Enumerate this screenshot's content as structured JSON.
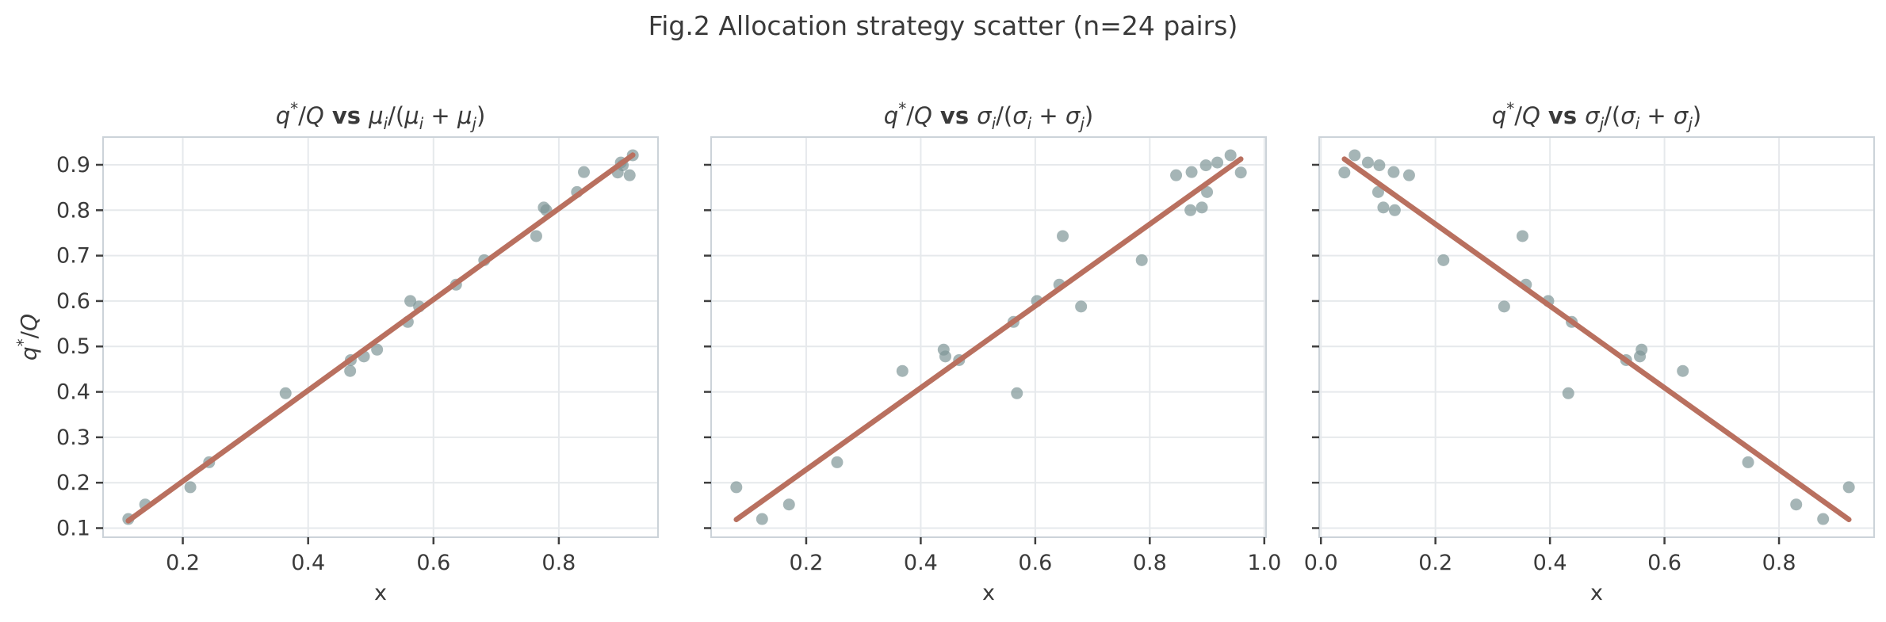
{
  "figure": {
    "suptitle": "Fig.2 Allocation strategy scatter (n=24 pairs)",
    "n_pairs": 24
  },
  "style": {
    "background": "#ffffff",
    "point_color": "#7f9597",
    "point_opacity": 0.7,
    "point_radius": 7.5,
    "line_color": "#b9705f",
    "line_width": 6.7,
    "grid_color": "#e6e9ec",
    "spine_color": "#ccd3d9",
    "tick_color": "#3f3f3f",
    "text_color": "#3a3a3a"
  },
  "chart_data": [
    {
      "type": "scatter",
      "title_plain": "q*/Q vs μi/(μi + μj)",
      "title_tokens": [
        {
          "t": "q",
          "it": 1
        },
        {
          "t": "*",
          "sup": 1
        },
        {
          "t": "/"
        },
        {
          "t": "Q",
          "it": 1
        },
        {
          "t": " vs ",
          "bold": 1
        },
        {
          "t": "μ",
          "it": 1
        },
        {
          "t": "i",
          "it": 1,
          "sub": 1
        },
        {
          "t": "/("
        },
        {
          "t": "μ",
          "it": 1
        },
        {
          "t": "i",
          "it": 1,
          "sub": 1
        },
        {
          "t": " + "
        },
        {
          "t": "μ",
          "it": 1
        },
        {
          "t": "j",
          "it": 1,
          "sub": 1
        },
        {
          "t": ")"
        }
      ],
      "xlabel": "x",
      "ylabel_plain": "q*/Q",
      "ylabel_tokens": [
        {
          "t": "q",
          "it": 1
        },
        {
          "t": "*",
          "sup": 1
        },
        {
          "t": "/"
        },
        {
          "t": "Q",
          "it": 1
        }
      ],
      "show_ytick_labels": true,
      "grid": true,
      "fit_line": "linear-ols",
      "xticks": [
        0.2,
        0.4,
        0.6,
        0.8
      ],
      "yticks": [
        0.1,
        0.2,
        0.3,
        0.4,
        0.5,
        0.6,
        0.7,
        0.8,
        0.9
      ],
      "xlim": [
        0.073,
        0.958
      ],
      "ylim": [
        0.08,
        0.961
      ],
      "x": [
        0.113,
        0.14,
        0.212,
        0.242,
        0.364,
        0.467,
        0.468,
        0.489,
        0.51,
        0.559,
        0.577,
        0.563,
        0.636,
        0.681,
        0.764,
        0.78,
        0.776,
        0.829,
        0.913,
        0.84,
        0.894,
        0.902,
        0.899,
        0.918
      ],
      "y": [
        0.12,
        0.152,
        0.19,
        0.245,
        0.397,
        0.446,
        0.47,
        0.478,
        0.493,
        0.554,
        0.588,
        0.6,
        0.636,
        0.69,
        0.743,
        0.8,
        0.806,
        0.84,
        0.877,
        0.884,
        0.883,
        0.899,
        0.905,
        0.921
      ]
    },
    {
      "type": "scatter",
      "title_plain": "q*/Q vs σi/(σi + σj)",
      "title_tokens": [
        {
          "t": "q",
          "it": 1
        },
        {
          "t": "*",
          "sup": 1
        },
        {
          "t": "/"
        },
        {
          "t": "Q",
          "it": 1
        },
        {
          "t": " vs ",
          "bold": 1
        },
        {
          "t": "σ",
          "it": 1
        },
        {
          "t": "i",
          "it": 1,
          "sub": 1
        },
        {
          "t": "/("
        },
        {
          "t": "σ",
          "it": 1
        },
        {
          "t": "i",
          "it": 1,
          "sub": 1
        },
        {
          "t": " + "
        },
        {
          "t": "σ",
          "it": 1
        },
        {
          "t": "j",
          "it": 1,
          "sub": 1
        },
        {
          "t": ")"
        }
      ],
      "xlabel": "x",
      "ylabel_plain": "",
      "ylabel_tokens": [],
      "show_ytick_labels": false,
      "grid": true,
      "fit_line": "linear-ols",
      "xticks": [
        0.2,
        0.4,
        0.6,
        0.8,
        1.0
      ],
      "yticks": [
        0.1,
        0.2,
        0.3,
        0.4,
        0.5,
        0.6,
        0.7,
        0.8,
        0.9
      ],
      "xlim": [
        0.034,
        1.003
      ],
      "ylim": [
        0.08,
        0.961
      ],
      "x": [
        0.123,
        0.17,
        0.078,
        0.254,
        0.568,
        0.368,
        0.467,
        0.443,
        0.44,
        0.562,
        0.68,
        0.603,
        0.642,
        0.786,
        0.648,
        0.871,
        0.891,
        0.9,
        0.846,
        0.873,
        0.959,
        0.898,
        0.918,
        0.941
      ],
      "y": [
        0.12,
        0.152,
        0.19,
        0.245,
        0.397,
        0.446,
        0.47,
        0.478,
        0.493,
        0.554,
        0.588,
        0.6,
        0.636,
        0.69,
        0.743,
        0.8,
        0.806,
        0.84,
        0.877,
        0.884,
        0.883,
        0.899,
        0.905,
        0.921
      ]
    },
    {
      "type": "scatter",
      "title_plain": "q*/Q vs σj/(σi + σj)",
      "title_tokens": [
        {
          "t": "q",
          "it": 1
        },
        {
          "t": "*",
          "sup": 1
        },
        {
          "t": "/"
        },
        {
          "t": "Q",
          "it": 1
        },
        {
          "t": " vs ",
          "bold": 1
        },
        {
          "t": "σ",
          "it": 1
        },
        {
          "t": "j",
          "it": 1,
          "sub": 1
        },
        {
          "t": "/("
        },
        {
          "t": "σ",
          "it": 1
        },
        {
          "t": "i",
          "it": 1,
          "sub": 1
        },
        {
          "t": " + "
        },
        {
          "t": "σ",
          "it": 1
        },
        {
          "t": "j",
          "it": 1,
          "sub": 1
        },
        {
          "t": ")"
        }
      ],
      "xlabel": "x",
      "ylabel_plain": "",
      "ylabel_tokens": [],
      "show_ytick_labels": false,
      "grid": true,
      "fit_line": "linear-ols",
      "xticks": [
        0.0,
        0.2,
        0.4,
        0.6,
        0.8
      ],
      "yticks": [
        0.1,
        0.2,
        0.3,
        0.4,
        0.5,
        0.6,
        0.7,
        0.8,
        0.9
      ],
      "xlim": [
        -0.003,
        0.966
      ],
      "ylim": [
        0.08,
        0.961
      ],
      "x": [
        0.877,
        0.83,
        0.922,
        0.746,
        0.432,
        0.632,
        0.533,
        0.557,
        0.56,
        0.438,
        0.32,
        0.397,
        0.358,
        0.214,
        0.352,
        0.129,
        0.109,
        0.1,
        0.154,
        0.127,
        0.041,
        0.102,
        0.082,
        0.059
      ],
      "y": [
        0.12,
        0.152,
        0.19,
        0.245,
        0.397,
        0.446,
        0.47,
        0.478,
        0.493,
        0.554,
        0.588,
        0.6,
        0.636,
        0.69,
        0.743,
        0.8,
        0.806,
        0.84,
        0.877,
        0.884,
        0.883,
        0.899,
        0.905,
        0.921
      ]
    }
  ]
}
